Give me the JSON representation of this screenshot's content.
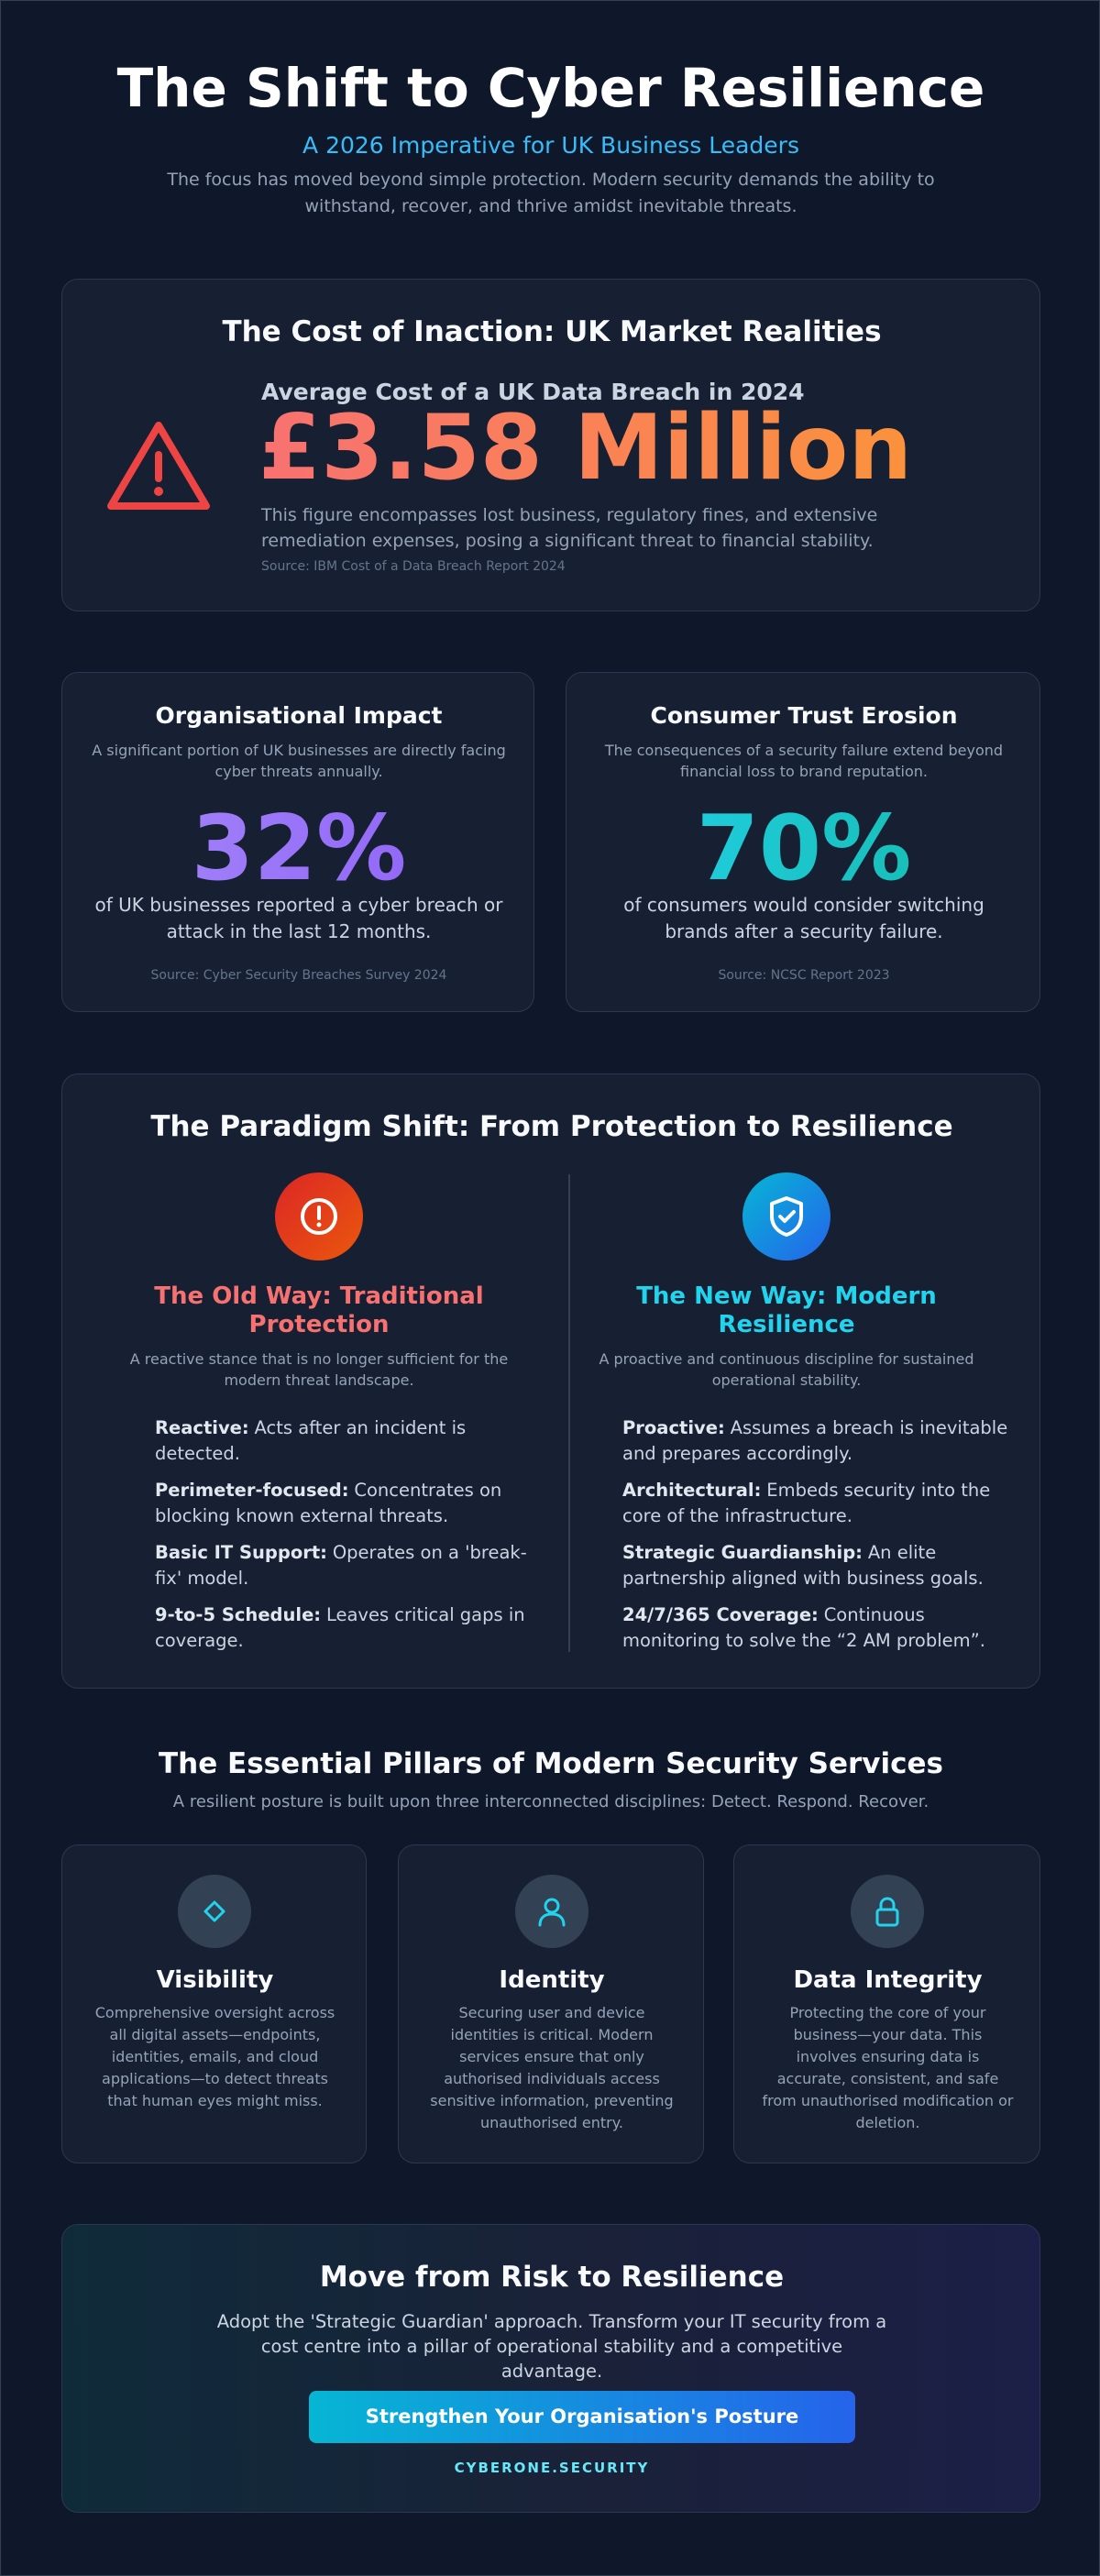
{
  "header": {
    "title": "The Shift to Cyber Resilience",
    "subtitle": "A 2026 Imperative for UK Business Leaders",
    "intro": "The focus has moved beyond simple protection. Modern security demands the ability to withstand, recover, and thrive amidst inevitable threats."
  },
  "cost_section": {
    "heading": "The Cost of Inaction: UK Market Realities",
    "label": "Average Cost of a UK Data Breach in 2024",
    "value": "£3.58 Million",
    "description": "This figure encompasses lost business, regulatory fines, and extensive remediation expenses, posing a significant threat to financial stability.",
    "source": "Source: IBM Cost of a Data Breach Report 2024"
  },
  "stats": [
    {
      "heading": "Organisational Impact",
      "description": "A significant portion of UK businesses are directly facing cyber threats annually.",
      "value": "32%",
      "caption": "of UK businesses reported a cyber breach or attack in the last 12 months.",
      "source": "Source: Cyber Security Breaches Survey 2024"
    },
    {
      "heading": "Consumer Trust Erosion",
      "description": "The consequences of a security failure extend beyond financial loss to brand reputation.",
      "value": "70%",
      "caption": "of consumers would consider switching brands after a security failure.",
      "source": "Source: NCSC Report 2023"
    }
  ],
  "paradigm": {
    "heading": "The Paradigm Shift: From Protection to Resilience",
    "columns": [
      {
        "title": "The Old Way: Traditional Protection",
        "description": "A reactive stance that is no longer sufficient for the modern threat landscape.",
        "items": [
          {
            "term": "Reactive:",
            "text": "Acts after an incident is detected."
          },
          {
            "term": "Perimeter-focused:",
            "text": "Concentrates on blocking known external threats."
          },
          {
            "term": "Basic IT Support:",
            "text": "Operates on a 'break-fix' model."
          },
          {
            "term": "9-to-5 Schedule:",
            "text": "Leaves critical gaps in coverage."
          }
        ]
      },
      {
        "title": "The New Way: Modern Resilience",
        "description": "A proactive and continuous discipline for sustained operational stability.",
        "items": [
          {
            "term": "Proactive:",
            "text": "Assumes a breach is inevitable and prepares accordingly."
          },
          {
            "term": "Architectural:",
            "text": "Embeds security into the core of the infrastructure."
          },
          {
            "term": "Strategic Guardianship:",
            "text": "An elite partnership aligned with business goals."
          },
          {
            "term": "24/7/365 Coverage:",
            "text": "Continuous monitoring to solve the “2 AM problem”."
          }
        ]
      }
    ]
  },
  "pillars": {
    "heading": "The Essential Pillars of Modern Security Services",
    "subtitle": "A resilient posture is built upon three interconnected disciplines: Detect. Respond. Recover.",
    "cards": [
      {
        "title": "Visibility",
        "description": "Comprehensive oversight across all digital assets—endpoints, identities, emails, and cloud applications—to detect threats that human eyes might miss."
      },
      {
        "title": "Identity",
        "description": "Securing user and device identities is critical. Modern services ensure that only authorised individuals access sensitive information, preventing unauthorised entry."
      },
      {
        "title": "Data Integrity",
        "description": "Protecting the core of your business—your data. This involves ensuring data is accurate, consistent, and safe from unauthorised modification or deletion."
      }
    ]
  },
  "cta": {
    "heading": "Move from Risk to Resilience",
    "text": "Adopt the 'Strategic Guardian' approach. Transform your IT security from a cost centre into a pillar of operational stability and a competitive advantage.",
    "button": "Strengthen Your Organisation's Posture",
    "brand": "CYBERONE.SECURITY"
  }
}
